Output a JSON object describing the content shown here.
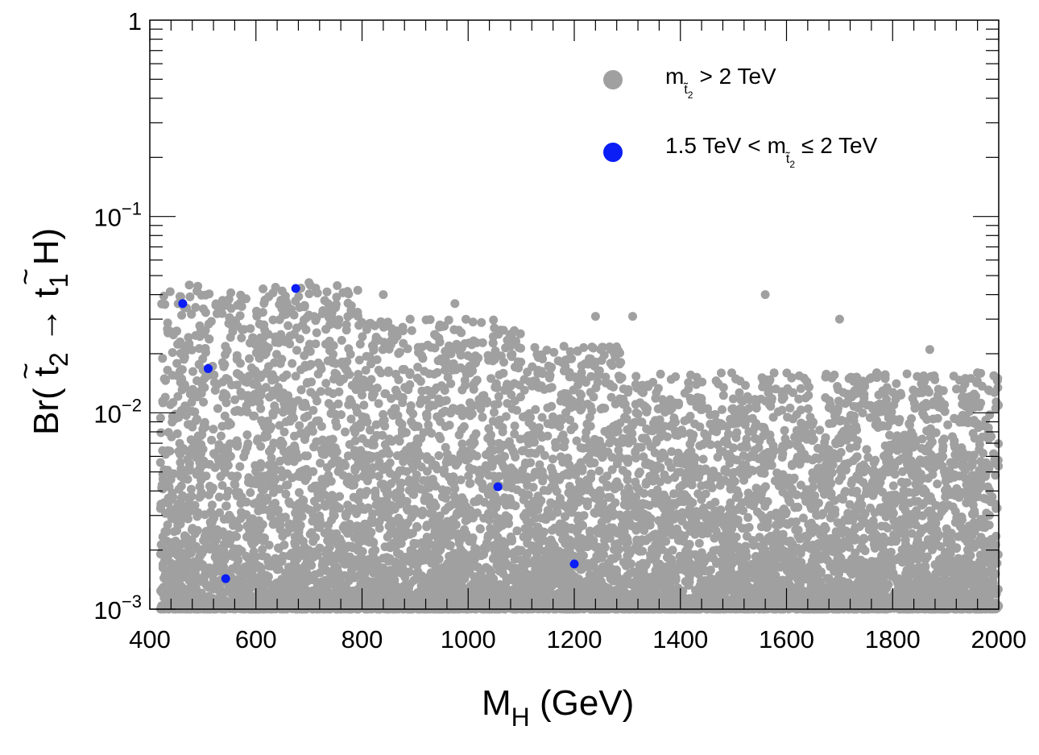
{
  "chart_data": {
    "type": "scatter",
    "title": "",
    "xlabel": "M_H (GeV)",
    "ylabel": "Br( t̃2 → t̃1 H)",
    "x_scale": "linear",
    "y_scale": "log",
    "xlim": [
      400,
      2000
    ],
    "ylim": [
      0.001,
      1
    ],
    "x_ticks": [
      400,
      600,
      800,
      1000,
      1200,
      1400,
      1600,
      1800,
      2000
    ],
    "x_tick_labels": [
      "400",
      "600",
      "800",
      "1000",
      "1200",
      "1400",
      "1600",
      "1800",
      "2000"
    ],
    "y_ticks": [
      0.001,
      0.01,
      0.1,
      1
    ],
    "y_tick_labels": [
      {
        "base": "10",
        "exp": "−3"
      },
      {
        "base": "10",
        "exp": "−2"
      },
      {
        "base": "10",
        "exp": "−1"
      },
      {
        "base": "1",
        "exp": ""
      }
    ],
    "axis_title_x": {
      "main": "M",
      "sub": "H",
      "rest": " (GeV)"
    },
    "axis_title_y": {
      "pre": "Br(",
      "p1": "t",
      "s1": "2",
      "arrow": "→",
      "p2": "t",
      "s2": "1",
      "post": "H)"
    },
    "legend_position": "top-right",
    "series": [
      {
        "name": "m_t̃2 > 2 TeV",
        "legend": {
          "m": "m",
          "sub": "t̃",
          "subsub": "2",
          "rest": "> 2 TeV",
          "pre": ""
        },
        "color": "#a0a0a0",
        "n_points": 9000,
        "points": "dense random cloud between M_H 420–2000 GeV and Br 0.001–0.045, density highest near 0.001–0.005"
      },
      {
        "name": "1.5 TeV < m_t̃2 ≤ 2 TeV",
        "legend": {
          "pre": "1.5 TeV <",
          "m": "m",
          "sub": "t̃",
          "subsub": "2",
          "rest": "≤ 2 TeV"
        },
        "color": "#0a1ef5",
        "points": [
          {
            "x": 462,
            "y": 0.036
          },
          {
            "x": 510,
            "y": 0.0168
          },
          {
            "x": 543,
            "y": 0.00143
          },
          {
            "x": 675,
            "y": 0.043
          },
          {
            "x": 1056,
            "y": 0.0042
          },
          {
            "x": 1200,
            "y": 0.0017
          }
        ]
      }
    ]
  }
}
